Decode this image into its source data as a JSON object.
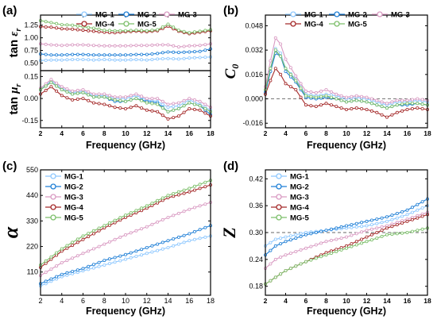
{
  "chart_data": [
    {
      "panel": "(a)",
      "type": "line",
      "xlabel": "Frequency (GHz)",
      "xlim": [
        2,
        18
      ],
      "x_ticks": [
        2,
        4,
        6,
        8,
        10,
        12,
        14,
        16,
        18
      ],
      "subplots": [
        {
          "ylabel": "tan ε_r",
          "ylabel_parts": {
            "main": "tan ",
            "sym": "ε",
            "sub": "r"
          },
          "ylim": [
            0.35,
            1.45
          ],
          "y_ticks": [
            "0.50",
            "0.75",
            "1.00",
            "1.25"
          ],
          "y_tick_values": [
            0.5,
            0.75,
            1.0,
            1.25
          ],
          "x": [
            2,
            3,
            4,
            5,
            6,
            7,
            8,
            9,
            10,
            11,
            12,
            13,
            14,
            15,
            16,
            17,
            18
          ],
          "series": [
            {
              "name": "MG-1",
              "values": [
                0.55,
                0.56,
                0.56,
                0.57,
                0.57,
                0.56,
                0.57,
                0.56,
                0.56,
                0.57,
                0.56,
                0.58,
                0.59,
                0.58,
                0.6,
                0.61,
                0.62
              ]
            },
            {
              "name": "MG-2",
              "values": [
                0.68,
                0.66,
                0.66,
                0.67,
                0.67,
                0.66,
                0.66,
                0.66,
                0.66,
                0.67,
                0.67,
                0.69,
                0.72,
                0.71,
                0.72,
                0.73,
                0.78
              ]
            },
            {
              "name": "MG-3",
              "values": [
                0.88,
                0.86,
                0.85,
                0.86,
                0.86,
                0.85,
                0.84,
                0.84,
                0.84,
                0.85,
                0.85,
                0.86,
                0.86,
                0.82,
                0.84,
                0.85,
                0.88
              ]
            },
            {
              "name": "MG-4",
              "values": [
                1.22,
                1.21,
                1.18,
                1.17,
                1.15,
                1.13,
                1.11,
                1.1,
                1.12,
                1.13,
                1.12,
                1.14,
                1.23,
                1.13,
                1.08,
                1.11,
                1.14
              ]
            },
            {
              "name": "MG-5",
              "values": [
                1.34,
                1.3,
                1.26,
                1.25,
                1.22,
                1.19,
                1.15,
                1.14,
                1.14,
                1.15,
                1.14,
                1.16,
                1.27,
                1.15,
                1.1,
                1.13,
                1.16
              ]
            }
          ]
        },
        {
          "ylabel": "tan μ_r",
          "ylabel_parts": {
            "main": "tan ",
            "sym": "μ",
            "sub": "r"
          },
          "ylim": [
            -0.2,
            0.19
          ],
          "y_ticks": [
            "0.15",
            "0.00",
            "-0.15"
          ],
          "y_tick_values": [
            0.15,
            0.0,
            -0.15
          ],
          "x": [
            2,
            3,
            4,
            5,
            6,
            7,
            8,
            9,
            10,
            11,
            12,
            13,
            14,
            15,
            16,
            17,
            18
          ],
          "series": [
            {
              "name": "MG-1",
              "values": [
                0.06,
                0.12,
                0.07,
                0.04,
                0.05,
                0.02,
                0.02,
                0.0,
                0.0,
                0.02,
                -0.01,
                -0.02,
                -0.06,
                -0.05,
                -0.01,
                -0.04,
                -0.08
              ]
            },
            {
              "name": "MG-2",
              "values": [
                0.06,
                0.11,
                0.06,
                0.03,
                0.04,
                0.01,
                0.01,
                -0.02,
                -0.02,
                0.0,
                -0.02,
                -0.03,
                -0.09,
                -0.07,
                -0.03,
                -0.05,
                -0.11
              ]
            },
            {
              "name": "MG-3",
              "values": [
                0.07,
                0.13,
                0.08,
                0.05,
                0.06,
                0.03,
                0.03,
                0.01,
                0.01,
                0.03,
                0.0,
                0.0,
                -0.04,
                -0.03,
                0.0,
                -0.02,
                -0.06
              ]
            },
            {
              "name": "MG-4",
              "values": [
                0.03,
                0.08,
                0.02,
                -0.01,
                0.0,
                -0.03,
                -0.04,
                -0.06,
                -0.07,
                -0.05,
                -0.08,
                -0.09,
                -0.14,
                -0.12,
                -0.07,
                -0.08,
                -0.12
              ]
            },
            {
              "name": "MG-5",
              "values": [
                0.06,
                0.11,
                0.06,
                0.03,
                0.04,
                0.01,
                0.01,
                -0.01,
                -0.02,
                0.0,
                -0.03,
                -0.04,
                -0.09,
                -0.07,
                -0.03,
                -0.05,
                -0.09
              ]
            }
          ]
        }
      ],
      "legend_entries": [
        "MG-1",
        "MG-2",
        "MG-3",
        "MG-4",
        "MG-5"
      ],
      "legend_position": "top"
    },
    {
      "panel": "(b)",
      "type": "line",
      "xlabel": "Frequency (GHz)",
      "ylabel": "C_0",
      "ylabel_parts": {
        "main": "C",
        "sub": "0"
      },
      "xlim": [
        2,
        18
      ],
      "ylim": [
        -0.019,
        0.055
      ],
      "x_ticks": [
        2,
        4,
        6,
        8,
        10,
        12,
        14,
        16,
        18
      ],
      "y_ticks": [
        "0.048",
        "0.032",
        "0.016",
        "0.000",
        "-0.016"
      ],
      "y_tick_values": [
        0.048,
        0.032,
        0.016,
        0.0,
        -0.016
      ],
      "reference_line": 0,
      "x": [
        2,
        2.5,
        3,
        3.5,
        4,
        5,
        6,
        7,
        8,
        9,
        10,
        11,
        12,
        13,
        14,
        15,
        16,
        17,
        18
      ],
      "series": [
        {
          "name": "MG-1",
          "values": [
            0.005,
            0.02,
            0.033,
            0.03,
            0.02,
            0.013,
            0.003,
            0.002,
            0.003,
            0.002,
            0.0,
            0.001,
            0.0,
            -0.002,
            -0.004,
            -0.002,
            -0.002,
            -0.001,
            -0.002
          ]
        },
        {
          "name": "MG-2",
          "values": [
            0.004,
            0.018,
            0.03,
            0.028,
            0.018,
            0.011,
            0.001,
            0.0,
            0.001,
            0.0,
            -0.002,
            -0.001,
            -0.002,
            -0.004,
            -0.006,
            -0.004,
            -0.004,
            -0.003,
            -0.004
          ]
        },
        {
          "name": "MG-3",
          "values": [
            0.008,
            0.025,
            0.04,
            0.036,
            0.026,
            0.015,
            0.005,
            0.004,
            0.006,
            0.003,
            0.001,
            0.002,
            0.001,
            -0.001,
            -0.003,
            -0.001,
            -0.001,
            0.0,
            -0.001
          ]
        },
        {
          "name": "MG-4",
          "values": [
            0.003,
            0.012,
            0.02,
            0.016,
            0.01,
            0.006,
            -0.004,
            -0.005,
            -0.003,
            -0.005,
            -0.007,
            -0.006,
            -0.007,
            -0.009,
            -0.012,
            -0.009,
            -0.007,
            -0.006,
            -0.007
          ]
        },
        {
          "name": "MG-5",
          "values": [
            0.006,
            0.02,
            0.032,
            0.028,
            0.02,
            0.012,
            0.002,
            0.001,
            0.002,
            0.0,
            -0.002,
            -0.001,
            -0.002,
            -0.004,
            -0.006,
            -0.004,
            -0.003,
            -0.003,
            -0.004
          ]
        }
      ],
      "legend_position": "top"
    },
    {
      "panel": "(c)",
      "type": "line",
      "xlabel": "Frequency (GHz)",
      "ylabel": "α",
      "xlim": [
        2,
        18
      ],
      "ylim": [
        10,
        550
      ],
      "x_ticks": [
        2,
        4,
        6,
        8,
        10,
        12,
        14,
        16,
        18
      ],
      "y_ticks": [
        "550",
        "440",
        "330",
        "220",
        "110"
      ],
      "y_tick_values": [
        550,
        440,
        330,
        220,
        110
      ],
      "x": [
        2,
        4,
        6,
        8,
        10,
        12,
        14,
        16,
        18
      ],
      "series": [
        {
          "name": "MG-1",
          "values": [
            50,
            90,
            115,
            140,
            165,
            190,
            215,
            245,
            265
          ]
        },
        {
          "name": "MG-2",
          "values": [
            60,
            100,
            125,
            160,
            185,
            215,
            245,
            275,
            310
          ]
        },
        {
          "name": "MG-3",
          "values": [
            95,
            150,
            190,
            230,
            270,
            305,
            345,
            380,
            410
          ]
        },
        {
          "name": "MG-4",
          "values": [
            130,
            200,
            250,
            300,
            345,
            385,
            430,
            455,
            485
          ]
        },
        {
          "name": "MG-5",
          "values": [
            140,
            210,
            265,
            310,
            355,
            395,
            440,
            470,
            505
          ]
        }
      ],
      "legend_position": "top-left"
    },
    {
      "panel": "(d)",
      "type": "line",
      "xlabel": "Frequency (GHz)",
      "ylabel": "Z",
      "xlim": [
        2,
        18
      ],
      "ylim": [
        0.16,
        0.44
      ],
      "x_ticks": [
        2,
        4,
        6,
        8,
        10,
        12,
        14,
        16,
        18
      ],
      "y_ticks": [
        "0.42",
        "0.36",
        "0.30",
        "0.24",
        "0.18"
      ],
      "y_tick_values": [
        0.42,
        0.36,
        0.3,
        0.24,
        0.18
      ],
      "reference_line": 0.3,
      "x": [
        2,
        3,
        4,
        6,
        8,
        10,
        12,
        14,
        16,
        18
      ],
      "series": [
        {
          "name": "MG-1",
          "values": [
            0.27,
            0.285,
            0.29,
            0.3,
            0.305,
            0.31,
            0.315,
            0.325,
            0.34,
            0.36
          ]
        },
        {
          "name": "MG-2",
          "values": [
            0.25,
            0.27,
            0.28,
            0.295,
            0.305,
            0.315,
            0.325,
            0.335,
            0.35,
            0.375
          ]
        },
        {
          "name": "MG-3",
          "values": [
            0.22,
            0.24,
            0.25,
            0.265,
            0.28,
            0.29,
            0.305,
            0.315,
            0.33,
            0.345
          ]
        },
        {
          "name": "MG-4",
          "values": [
            0.185,
            0.2,
            0.215,
            0.235,
            0.255,
            0.27,
            0.29,
            0.31,
            0.325,
            0.34
          ]
        },
        {
          "name": "MG-5",
          "values": [
            0.185,
            0.2,
            0.215,
            0.235,
            0.25,
            0.265,
            0.28,
            0.295,
            0.3,
            0.31
          ]
        }
      ],
      "legend_position": "top-left"
    }
  ],
  "series_colors": {
    "MG-1": "#8ec8ff",
    "MG-2": "#1f7fd6",
    "MG-3": "#d99ac2",
    "MG-4": "#a52a2a",
    "MG-5": "#7cbf6a"
  }
}
